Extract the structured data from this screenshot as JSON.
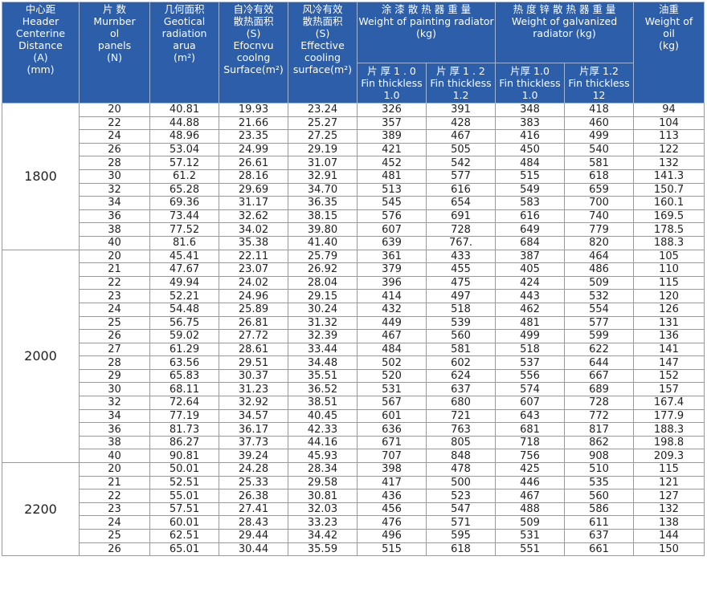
{
  "table": {
    "header": [
      [
        "中心距",
        "Header",
        "Centerine",
        "Distance",
        "(A)",
        "(mm)"
      ],
      [
        "片 数",
        "Murnber",
        "ol",
        "panels",
        "(N)"
      ],
      [
        "几何面积",
        "Geotical",
        "radiation",
        "arua",
        "(m²)"
      ],
      [
        "自冷有效",
        "散热面积",
        "(S)",
        "Efocnvu",
        "coolng",
        "Surface(m²)"
      ],
      [
        "风冷有效",
        "散热面积",
        "(S)",
        "Effective",
        "cooling",
        "surface(m²)"
      ],
      [
        "涂 漆 散 热 器 重 量",
        "Weight of painting radiator",
        "(kg)"
      ],
      [
        "热 度 锌 散 热 器 重 量",
        "Weight of galvanized",
        "radiator (kg)"
      ],
      [
        "油重",
        "Weight of",
        "oil",
        "(kg)"
      ]
    ],
    "subheader": [
      [
        "片 厚 1 . 0",
        "Fin thickless",
        "1.0"
      ],
      [
        "片 厚 1 . 2",
        "Fin thickless",
        "1.2"
      ],
      [
        "片厚 1.0",
        "Fin thickless",
        "1.0"
      ],
      [
        "片厚 1.2",
        "Fin thickless",
        "12"
      ]
    ],
    "groups": [
      {
        "distance": "1800",
        "rows": [
          [
            "20",
            "40.81",
            "19.93",
            "23.24",
            "326",
            "391",
            "348",
            "418",
            "94"
          ],
          [
            "22",
            "44.88",
            "21.66",
            "25.27",
            "357",
            "428",
            "383",
            "460",
            "104"
          ],
          [
            "24",
            "48.96",
            "23.35",
            "27.25",
            "389",
            "467",
            "416",
            "499",
            "113"
          ],
          [
            "26",
            "53.04",
            "24.99",
            "29.19",
            "421",
            "505",
            "450",
            "540",
            "122"
          ],
          [
            "28",
            "57.12",
            "26.61",
            "31.07",
            "452",
            "542",
            "484",
            "581",
            "132"
          ],
          [
            "30",
            "61.2",
            "28.16",
            "32.91",
            "481",
            "577",
            "515",
            "618",
            "141.3"
          ],
          [
            "32",
            "65.28",
            "29.69",
            "34.70",
            "513",
            "616",
            "549",
            "659",
            "150.7"
          ],
          [
            "34",
            "69.36",
            "31.17",
            "36.35",
            "545",
            "654",
            "583",
            "700",
            "160.1"
          ],
          [
            "36",
            "73.44",
            "32.62",
            "38.15",
            "576",
            "691",
            "616",
            "740",
            "169.5"
          ],
          [
            "38",
            "77.52",
            "34.02",
            "39.80",
            "607",
            "728",
            "649",
            "779",
            "178.5"
          ],
          [
            "40",
            "81.6",
            "35.38",
            "41.40",
            "639",
            "767.",
            "684",
            "820",
            "188.3"
          ]
        ]
      },
      {
        "distance": "2000",
        "rows": [
          [
            "20",
            "45.41",
            "22.11",
            "25.79",
            "361",
            "433",
            "387",
            "464",
            "105"
          ],
          [
            "21",
            "47.67",
            "23.07",
            "26.92",
            "379",
            "455",
            "405",
            "486",
            "110"
          ],
          [
            "22",
            "49.94",
            "24.02",
            "28.04",
            "396",
            "475",
            "424",
            "509",
            "115"
          ],
          [
            "23",
            "52.21",
            "24.96",
            "29.15",
            "414",
            "497",
            "443",
            "532",
            "120"
          ],
          [
            "24",
            "54.48",
            "25.89",
            "30.24",
            "432",
            "518",
            "462",
            "554",
            "126"
          ],
          [
            "25",
            "56.75",
            "26.81",
            "31.32",
            "449",
            "539",
            "481",
            "577",
            "131"
          ],
          [
            "26",
            "59.02",
            "27.72",
            "32.39",
            "467",
            "560",
            "499",
            "599",
            "136"
          ],
          [
            "27",
            "61.29",
            "28.61",
            "33.44",
            "484",
            "581",
            "518",
            "622",
            "141"
          ],
          [
            "28",
            "63.56",
            "29.51",
            "34.48",
            "502",
            "602",
            "537",
            "644",
            "147"
          ],
          [
            "29",
            "65.83",
            "30.37",
            "35.51",
            "520",
            "624",
            "556",
            "667",
            "152"
          ],
          [
            "30",
            "68.11",
            "31.23",
            "36.52",
            "531",
            "637",
            "574",
            "689",
            "157"
          ],
          [
            "32",
            "72.64",
            "32.92",
            "38.51",
            "567",
            "680",
            "607",
            "728",
            "167.4"
          ],
          [
            "34",
            "77.19",
            "34.57",
            "40.45",
            "601",
            "721",
            "643",
            "772",
            "177.9"
          ],
          [
            "36",
            "81.73",
            "36.17",
            "42.33",
            "636",
            "763",
            "681",
            "817",
            "188.3"
          ],
          [
            "38",
            "86.27",
            "37.73",
            "44.16",
            "671",
            "805",
            "718",
            "862",
            "198.8"
          ],
          [
            "40",
            "90.81",
            "39.24",
            "45.93",
            "707",
            "848",
            "756",
            "908",
            "209.3"
          ]
        ]
      },
      {
        "distance": "2200",
        "rows": [
          [
            "20",
            "50.01",
            "24.28",
            "28.34",
            "398",
            "478",
            "425",
            "510",
            "115"
          ],
          [
            "21",
            "52.51",
            "25.33",
            "29.58",
            "417",
            "500",
            "446",
            "535",
            "121"
          ],
          [
            "22",
            "55.01",
            "26.38",
            "30.81",
            "436",
            "523",
            "467",
            "560",
            "127"
          ],
          [
            "23",
            "57.51",
            "27.41",
            "32.03",
            "456",
            "547",
            "488",
            "586",
            "132"
          ],
          [
            "24",
            "60.01",
            "28.43",
            "33.23",
            "476",
            "571",
            "509",
            "611",
            "138"
          ],
          [
            "25",
            "62.51",
            "29.44",
            "34.42",
            "496",
            "595",
            "531",
            "637",
            "144"
          ],
          [
            "26",
            "65.01",
            "30.44",
            "35.59",
            "515",
            "618",
            "551",
            "661",
            "150"
          ]
        ]
      }
    ]
  }
}
